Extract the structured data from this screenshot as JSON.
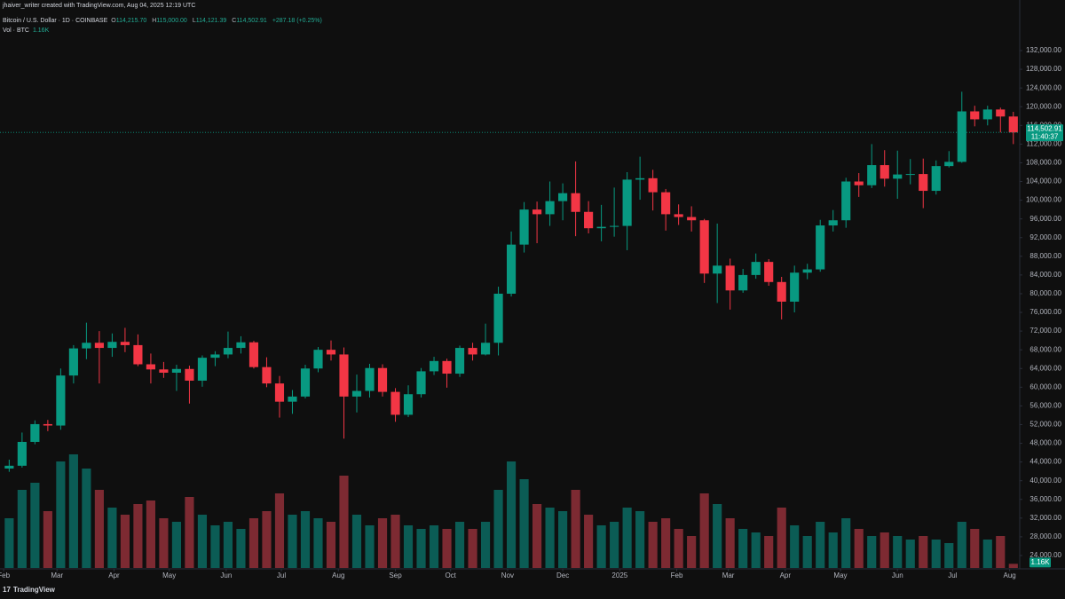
{
  "header": {
    "attribution": "jhaiver_writer created with TradingView.com, Aug 04, 2025 12:19 UTC"
  },
  "legend": {
    "symbol": "Bitcoin / U.S. Dollar · 1D · COINBASE",
    "open_key": "O",
    "open": "114,215.70",
    "high_key": "H",
    "high": "115,000.00",
    "low_key": "L",
    "low": "114,121.39",
    "close_key": "C",
    "close": "114,502.91",
    "change": "+287.18 (+0.25%)",
    "volume_name": "Vol · BTC",
    "volume_value": "1.16K"
  },
  "footer": {
    "logo": "17",
    "brand": "TradingView"
  },
  "chart_data": {
    "type": "candlestick",
    "up_color": "#089981",
    "down_color": "#f23645",
    "volume_up_color": "#0b5c55",
    "volume_down_color": "#7d2a32",
    "grid": false,
    "xlim": [
      -2,
      552
    ],
    "xticks": [
      {
        "value": 0,
        "label": "Feb"
      },
      {
        "value": 29,
        "label": "Mar"
      },
      {
        "value": 60,
        "label": "Apr"
      },
      {
        "value": 90,
        "label": "May"
      },
      {
        "value": 121,
        "label": "Jun"
      },
      {
        "value": 151,
        "label": "Jul"
      },
      {
        "value": 182,
        "label": "Aug"
      },
      {
        "value": 213,
        "label": "Sep"
      },
      {
        "value": 243,
        "label": "Oct"
      },
      {
        "value": 274,
        "label": "Nov"
      },
      {
        "value": 304,
        "label": "Dec"
      },
      {
        "value": 335,
        "label": "2025"
      },
      {
        "value": 366,
        "label": "Feb"
      },
      {
        "value": 394,
        "label": "Mar"
      },
      {
        "value": 425,
        "label": "Apr"
      },
      {
        "value": 455,
        "label": "May"
      },
      {
        "value": 486,
        "label": "Jun"
      },
      {
        "value": 516,
        "label": "Jul"
      },
      {
        "value": 547,
        "label": "Aug"
      }
    ],
    "ylim": [
      21340,
      142820
    ],
    "yticks": [
      {
        "value": 24000,
        "label": "24,000.00"
      },
      {
        "value": 28000,
        "label": "28,000.00"
      },
      {
        "value": 32000,
        "label": "32,000.00"
      },
      {
        "value": 36000,
        "label": "36,000.00"
      },
      {
        "value": 40000,
        "label": "40,000.00"
      },
      {
        "value": 44000,
        "label": "44,000.00"
      },
      {
        "value": 48000,
        "label": "48,000.00"
      },
      {
        "value": 52000,
        "label": "52,000.00"
      },
      {
        "value": 56000,
        "label": "56,000.00"
      },
      {
        "value": 60000,
        "label": "60,000.00"
      },
      {
        "value": 64000,
        "label": "64,000.00"
      },
      {
        "value": 68000,
        "label": "68,000.00"
      },
      {
        "value": 72000,
        "label": "72,000.00"
      },
      {
        "value": 76000,
        "label": "76,000.00"
      },
      {
        "value": 80000,
        "label": "80,000.00"
      },
      {
        "value": 84000,
        "label": "84,000.00"
      },
      {
        "value": 88000,
        "label": "88,000.00"
      },
      {
        "value": 92000,
        "label": "92,000.00"
      },
      {
        "value": 96000,
        "label": "96,000.00"
      },
      {
        "value": 100000,
        "label": "100,000.00"
      },
      {
        "value": 104000,
        "label": "104,000.00"
      },
      {
        "value": 108000,
        "label": "108,000.00"
      },
      {
        "value": 112000,
        "label": "112,000.00"
      },
      {
        "value": 116000,
        "label": "116,000.00"
      },
      {
        "value": 120000,
        "label": "120,000.00"
      },
      {
        "value": 124000,
        "label": "124,000.00"
      },
      {
        "value": 128000,
        "label": "128,000.00"
      },
      {
        "value": 132000,
        "label": "132,000.00"
      }
    ],
    "volume_ylim": [
      0,
      45000
    ],
    "last_price": {
      "value": 114502.91,
      "label": "114,502.91"
    },
    "countdown": "11:40:37",
    "last_volume": {
      "value": 1160,
      "label": "1.16K"
    },
    "x": [
      3,
      10,
      17,
      24,
      31,
      38,
      45,
      52,
      59,
      66,
      73,
      80,
      87,
      94,
      101,
      108,
      115,
      122,
      129,
      136,
      143,
      150,
      157,
      164,
      171,
      178,
      185,
      192,
      199,
      206,
      213,
      220,
      227,
      234,
      241,
      248,
      255,
      262,
      269,
      276,
      283,
      290,
      297,
      304,
      311,
      318,
      325,
      332,
      339,
      346,
      353,
      360,
      367,
      374,
      381,
      388,
      395,
      402,
      409,
      416,
      423,
      430,
      437,
      444,
      451,
      458,
      465,
      472,
      479,
      486,
      493,
      500,
      507,
      514,
      521,
      528,
      535,
      542,
      549
    ],
    "open": [
      42600,
      43200,
      48300,
      52100,
      51800,
      62500,
      68300,
      69500,
      68400,
      69700,
      69000,
      64900,
      63800,
      63100,
      63900,
      61400,
      66300,
      67000,
      68400,
      69600,
      64300,
      60800,
      56900,
      58000,
      64000,
      68000,
      67000,
      58000,
      59200,
      64100,
      59000,
      54100,
      58500,
      63400,
      65600,
      62900,
      68400,
      67000,
      69500,
      80000,
      90500,
      98000,
      97000,
      99800,
      101500,
      97500,
      94000,
      94300,
      94500,
      104400,
      104700,
      101700,
      97000,
      96400,
      95700,
      84300,
      86000,
      80700,
      84000,
      86800,
      82500,
      78300,
      84500,
      85200,
      94600,
      95700,
      104000,
      103200,
      107500,
      104600,
      105500,
      105600,
      102000,
      107300,
      108200,
      119000,
      117300,
      119400,
      117900
    ],
    "high": [
      44500,
      50300,
      52900,
      53000,
      64000,
      69000,
      73800,
      72000,
      71500,
      72700,
      71300,
      67200,
      65400,
      64800,
      64600,
      66800,
      67700,
      71900,
      70900,
      69900,
      66400,
      62400,
      59400,
      64800,
      68600,
      70000,
      68500,
      62700,
      65000,
      64900,
      59800,
      60400,
      64100,
      66500,
      66100,
      68900,
      69500,
      73600,
      81500,
      93300,
      99600,
      99700,
      104000,
      103600,
      108300,
      99800,
      99000,
      102700,
      106000,
      109300,
      106500,
      102400,
      99100,
      98700,
      96000,
      95000,
      87500,
      85300,
      88600,
      87400,
      83600,
      86000,
      86400,
      95800,
      97900,
      104800,
      105800,
      112000,
      110700,
      110600,
      108800,
      108900,
      108500,
      110500,
      123200,
      120200,
      120200,
      119800,
      118900
    ],
    "low": [
      41900,
      42800,
      47800,
      50600,
      50900,
      60800,
      66000,
      60800,
      66500,
      67500,
      64500,
      60800,
      62000,
      59200,
      56500,
      60100,
      64500,
      66200,
      67200,
      64000,
      60000,
      53500,
      54300,
      57600,
      63200,
      65700,
      49000,
      54600,
      57800,
      58000,
      52600,
      53600,
      57800,
      62600,
      59900,
      62200,
      65700,
      66800,
      66800,
      79400,
      88800,
      90800,
      94500,
      95700,
      92300,
      92900,
      91200,
      92200,
      89300,
      100100,
      97800,
      93500,
      94700,
      93300,
      82300,
      78000,
      76600,
      80200,
      83200,
      81700,
      74500,
      76000,
      83100,
      84700,
      93300,
      94100,
      100700,
      102600,
      102900,
      100300,
      103400,
      98300,
      101200,
      107000,
      108000,
      115800,
      116000,
      114500,
      112000
    ],
    "close": [
      43200,
      48300,
      52100,
      51800,
      62500,
      68300,
      69500,
      68400,
      69700,
      69000,
      64900,
      63800,
      63100,
      63900,
      61400,
      66300,
      67000,
      68400,
      69600,
      64300,
      60800,
      56900,
      58000,
      64000,
      68000,
      67000,
      58000,
      59200,
      64100,
      59000,
      54100,
      58500,
      63400,
      65600,
      62900,
      68400,
      67000,
      69500,
      80000,
      90500,
      98000,
      97000,
      99800,
      101500,
      97500,
      94000,
      94300,
      94500,
      104400,
      104700,
      101700,
      97000,
      96400,
      95700,
      84300,
      86000,
      80700,
      84000,
      86800,
      82500,
      78300,
      84500,
      85200,
      94600,
      95700,
      104000,
      103200,
      107500,
      104600,
      105500,
      105600,
      102000,
      107300,
      108200,
      119000,
      117300,
      119400,
      117900,
      114502.91
    ],
    "volume": [
      14000,
      22000,
      24000,
      16000,
      30000,
      32000,
      28000,
      22000,
      17000,
      15000,
      18000,
      19000,
      14000,
      13000,
      20000,
      15000,
      12000,
      13000,
      11000,
      14000,
      16000,
      21000,
      15000,
      16000,
      14000,
      13000,
      26000,
      15000,
      12000,
      14000,
      15000,
      12000,
      11000,
      12000,
      11000,
      13000,
      11000,
      13000,
      22000,
      30000,
      25000,
      18000,
      17000,
      16000,
      22000,
      15000,
      12000,
      13000,
      17000,
      16000,
      13000,
      14000,
      11000,
      9000,
      21000,
      18000,
      14000,
      11000,
      10000,
      9000,
      17000,
      12000,
      9000,
      13000,
      10000,
      14000,
      11000,
      9000,
      10000,
      9000,
      8000,
      9000,
      8000,
      7000,
      13000,
      11000,
      8000,
      9000,
      1160
    ]
  }
}
